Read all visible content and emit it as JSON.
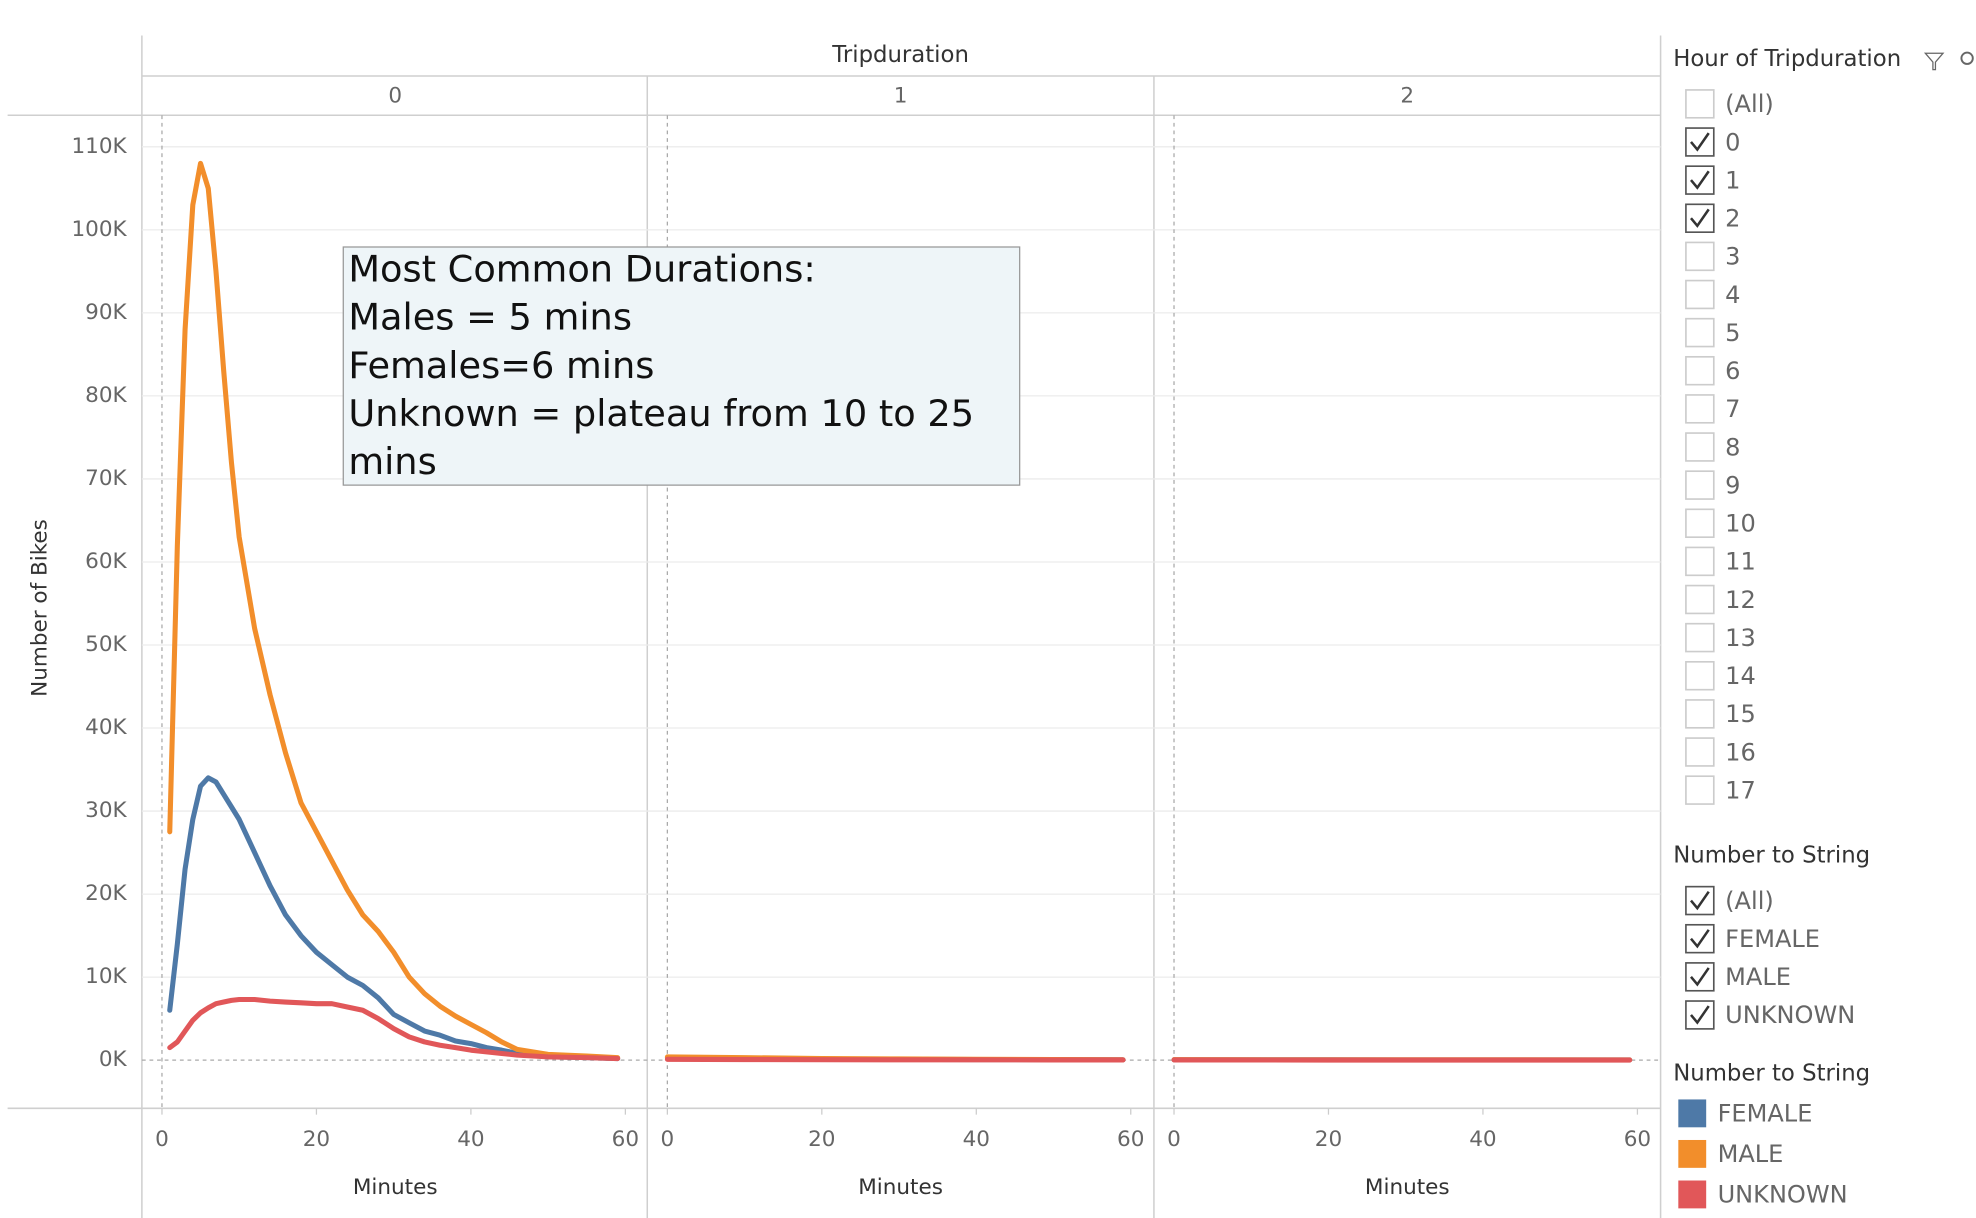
{
  "chart_data": {
    "type": "line",
    "title": "Tripduration",
    "x_label": "Minutes",
    "y_label": "Number of Bikes",
    "xlim": [
      -2.6,
      63
    ],
    "xticks": [
      0,
      20,
      40,
      60
    ],
    "ylim": [
      -5800,
      113800
    ],
    "yticks": [
      {
        "value": 0,
        "label": "0K"
      },
      {
        "value": 10000,
        "label": "10K"
      },
      {
        "value": 20000,
        "label": "20K"
      },
      {
        "value": 30000,
        "label": "30K"
      },
      {
        "value": 40000,
        "label": "40K"
      },
      {
        "value": 50000,
        "label": "50K"
      },
      {
        "value": 60000,
        "label": "60K"
      },
      {
        "value": 70000,
        "label": "70K"
      },
      {
        "value": 80000,
        "label": "80K"
      },
      {
        "value": 90000,
        "label": "90K"
      },
      {
        "value": 100000,
        "label": "100K"
      },
      {
        "value": 110000,
        "label": "110K"
      }
    ],
    "grid": true,
    "legend_title": "Number to String",
    "annotation": [
      "Most Common Durations:",
      "Males = 5 mins",
      "Females=6 mins",
      "Unknown = plateau from 10 to 25",
      "mins"
    ],
    "facets": [
      {
        "label": "0",
        "x": [
          1,
          2,
          3,
          4,
          5,
          6,
          7,
          8,
          9,
          10,
          12,
          14,
          16,
          18,
          20,
          22,
          24,
          26,
          28,
          30,
          32,
          34,
          36,
          38,
          40,
          42,
          44,
          46,
          48,
          50,
          55,
          59
        ],
        "series": [
          {
            "name": "FEMALE",
            "color": "#4e79a7",
            "values": [
              6000,
              14000,
              23000,
              29000,
              33000,
              34000,
              33500,
              32000,
              30500,
              29000,
              25000,
              21000,
              17500,
              15000,
              13000,
              11500,
              10000,
              9000,
              7500,
              5500,
              4500,
              3500,
              3000,
              2300,
              2000,
              1500,
              1200,
              800,
              600,
              400,
              300,
              200
            ]
          },
          {
            "name": "MALE",
            "color": "#f28e2b",
            "values": [
              27500,
              62000,
              88000,
              103000,
              108000,
              105000,
              95000,
              83000,
              72000,
              63000,
              52000,
              44000,
              37000,
              31000,
              27500,
              24000,
              20500,
              17500,
              15500,
              13000,
              10000,
              8000,
              6500,
              5300,
              4300,
              3300,
              2200,
              1300,
              1000,
              700,
              500,
              300
            ]
          },
          {
            "name": "UNKNOWN",
            "color": "#e15759",
            "values": [
              1500,
              2200,
              3500,
              4800,
              5700,
              6300,
              6800,
              7000,
              7200,
              7300,
              7300,
              7100,
              7000,
              6900,
              6800,
              6800,
              6400,
              6000,
              5000,
              3800,
              2800,
              2200,
              1800,
              1500,
              1200,
              1000,
              800,
              600,
              500,
              400,
              300,
              200
            ]
          }
        ]
      },
      {
        "label": "1",
        "x": [
          0,
          10,
          20,
          30,
          40,
          50,
          59
        ],
        "series": [
          {
            "name": "FEMALE",
            "color": "#4e79a7",
            "values": [
              300,
              200,
              150,
              100,
              80,
              60,
              40
            ]
          },
          {
            "name": "MALE",
            "color": "#f28e2b",
            "values": [
              400,
              300,
              200,
              150,
              100,
              80,
              50
            ]
          },
          {
            "name": "UNKNOWN",
            "color": "#e15759",
            "values": [
              100,
              80,
              60,
              50,
              40,
              30,
              20
            ]
          }
        ]
      },
      {
        "label": "2",
        "x": [
          0,
          20,
          40,
          59
        ],
        "series": [
          {
            "name": "FEMALE",
            "color": "#4e79a7",
            "values": [
              50,
              40,
              30,
              20
            ]
          },
          {
            "name": "MALE",
            "color": "#f28e2b",
            "values": [
              60,
              50,
              40,
              30
            ]
          },
          {
            "name": "UNKNOWN",
            "color": "#e15759",
            "values": [
              20,
              15,
              10,
              10
            ]
          }
        ]
      }
    ]
  },
  "filters": [
    {
      "title": "Hour of Tripduration",
      "items": [
        {
          "label": "(All)",
          "checked": false
        },
        {
          "label": "0",
          "checked": true
        },
        {
          "label": "1",
          "checked": true
        },
        {
          "label": "2",
          "checked": true
        },
        {
          "label": "3",
          "checked": false
        },
        {
          "label": "4",
          "checked": false
        },
        {
          "label": "5",
          "checked": false
        },
        {
          "label": "6",
          "checked": false
        },
        {
          "label": "7",
          "checked": false
        },
        {
          "label": "8",
          "checked": false
        },
        {
          "label": "9",
          "checked": false
        },
        {
          "label": "10",
          "checked": false
        },
        {
          "label": "11",
          "checked": false
        },
        {
          "label": "12",
          "checked": false
        },
        {
          "label": "13",
          "checked": false
        },
        {
          "label": "14",
          "checked": false
        },
        {
          "label": "15",
          "checked": false
        },
        {
          "label": "16",
          "checked": false
        },
        {
          "label": "17",
          "checked": false
        }
      ]
    },
    {
      "title": "Number to String",
      "items": [
        {
          "label": "(All)",
          "checked": true
        },
        {
          "label": "FEMALE",
          "checked": true
        },
        {
          "label": "MALE",
          "checked": true
        },
        {
          "label": "UNKNOWN",
          "checked": true
        }
      ]
    }
  ]
}
